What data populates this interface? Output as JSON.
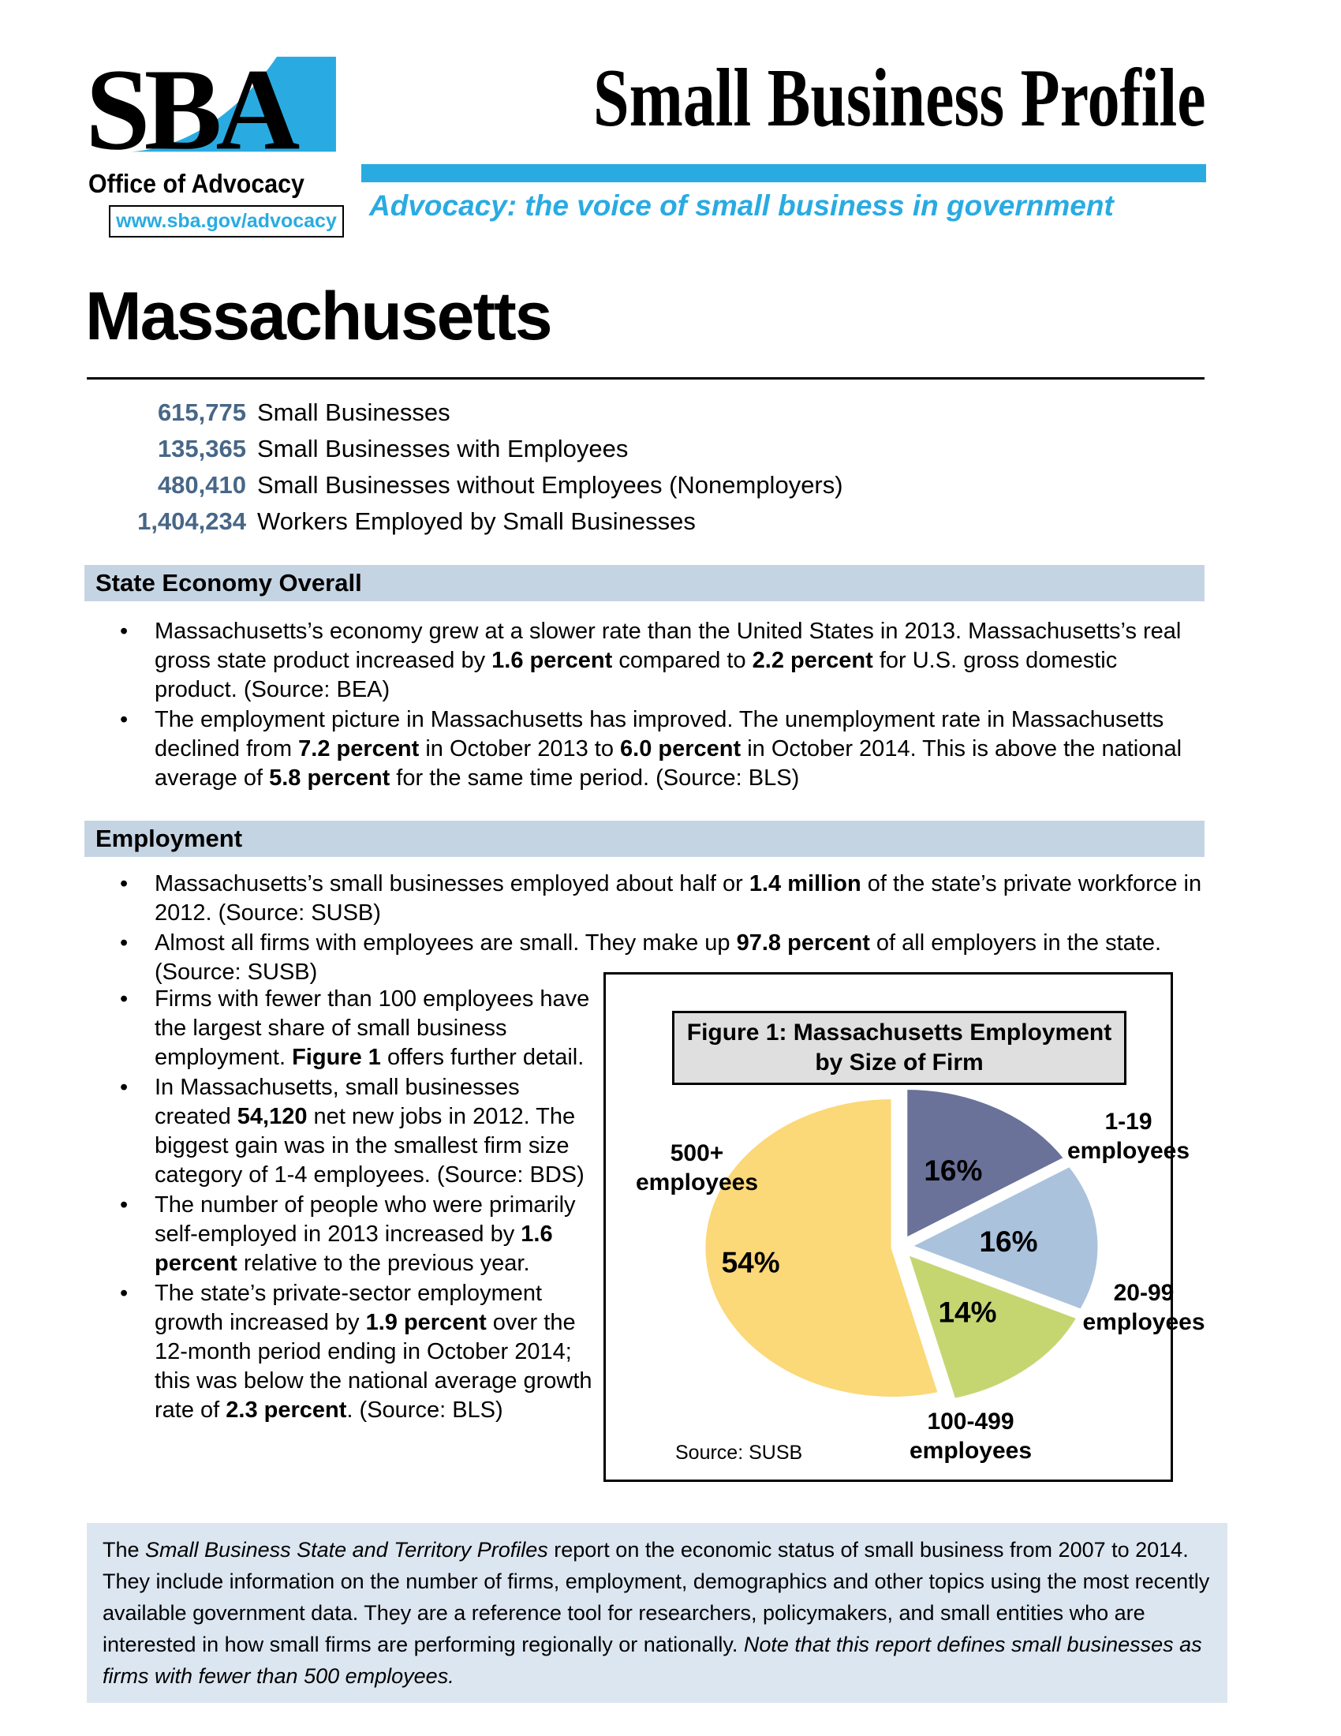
{
  "header": {
    "logo_text": "SBA",
    "logo_subtitle": "Office of Advocacy",
    "logo_url": "www.sba.gov/advocacy",
    "title": "Small Business Profile",
    "tagline": "Advocacy: the voice of small business in government"
  },
  "state": {
    "name": "Massachusetts"
  },
  "stats": [
    {
      "value": "615,775",
      "label": "Small Businesses"
    },
    {
      "value": "135,365",
      "label": "Small Businesses with Employees"
    },
    {
      "value": "480,410",
      "label": "Small Businesses without Employees (Nonemployers)"
    },
    {
      "value": "1,404,234",
      "label": "Workers Employed by Small Businesses"
    }
  ],
  "sections": [
    {
      "heading": "State Economy Overall",
      "bullets": [
        [
          {
            "t": "Massachusetts’s economy grew at a slower rate than the United States in 2013. Massachusetts’s  real gross state product increased by "
          },
          {
            "t": "1.6 percent",
            "b": true
          },
          {
            "t": " compared to "
          },
          {
            "t": "2.2 percent",
            "b": true
          },
          {
            "t": " for U.S. gross domestic product. (Source: BEA)"
          }
        ],
        [
          {
            "t": "The employment picture in Massachusetts has improved. The unemployment rate in Massachusetts declined from "
          },
          {
            "t": "7.2 percent",
            "b": true
          },
          {
            "t": " in October 2013 to "
          },
          {
            "t": "6.0 percent",
            "b": true
          },
          {
            "t": " in October 2014. This is above the national average of "
          },
          {
            "t": "5.8 percent",
            "b": true
          },
          {
            "t": " for the same time period. (Source: BLS)"
          }
        ]
      ]
    },
    {
      "heading": "Employment",
      "bullets_full": [
        [
          {
            "t": "Massachusetts’s small businesses employed about half or "
          },
          {
            "t": "1.4 million",
            "b": true
          },
          {
            "t": " of the state’s private workforce in 2012. (Source: SUSB)"
          }
        ],
        [
          {
            "t": "Almost  all firms with employees are small. They make up "
          },
          {
            "t": "97.8 percent",
            "b": true
          },
          {
            "t": " of all employers in the state. (Source: SUSB)"
          }
        ]
      ],
      "bullets_left": [
        [
          {
            "t": "Firms with fewer than 100 employees have the largest share of small business employment. "
          },
          {
            "t": "Figure 1",
            "b": true
          },
          {
            "t": " offers further detail."
          }
        ],
        [
          {
            "t": "In Massachusetts, small businesses created "
          },
          {
            "t": "54,120",
            "b": true
          },
          {
            "t": " net new jobs in 2012. The biggest gain was in the smallest firm size category of 1-4 employees. (Source: BDS)"
          }
        ],
        [
          {
            "t": "The number of people who were primarily self-employed in 2013 increased by "
          },
          {
            "t": "1.6 percent",
            "b": true
          },
          {
            "t": " relative to the previous year."
          }
        ],
        [
          {
            "t": "The state’s private-sector employment growth increased by "
          },
          {
            "t": "1.9 percent",
            "b": true
          },
          {
            "t": " over the 12-month period ending in October 2014; this was below the national average growth rate of "
          },
          {
            "t": "2.3 percent",
            "b": true
          },
          {
            "t": ". (Source: BLS)"
          }
        ]
      ]
    }
  ],
  "figure": {
    "title": "Figure 1: Massachusetts Employment by Size of Firm",
    "source": "Source: SUSB",
    "chart_data": {
      "type": "pie",
      "title": "Figure 1: Massachusetts Employment by Size of Firm",
      "start_angle_deg": 0,
      "direction": "clockwise",
      "data_labels": "percent-inside",
      "legend_position": "outside-callout-labels",
      "slices": [
        {
          "label": "1-19 employees",
          "value": 16,
          "color": "#6A7299"
        },
        {
          "label": "20-99 employees",
          "value": 16,
          "color": "#AAC2DC"
        },
        {
          "label": "100-499 employees",
          "value": 14,
          "color": "#C5D671"
        },
        {
          "label": "500+ employees",
          "value": 54,
          "color": "#FBD878"
        }
      ],
      "source": "Source: SUSB"
    }
  },
  "footer": {
    "segments": [
      {
        "t": "The "
      },
      {
        "t": "Small Business State and Territory Profiles",
        "i": true
      },
      {
        "t": " report on the economic status of small business from 2007 to 2014. They include information on the number of firms, employment, demographics and other topics using the most recently available government data. They are a reference tool for researchers, policymakers, and small entities who are interested in how small firms are performing regionally or nationally. "
      },
      {
        "t": "Note that this report defines small businesses as firms with fewer than 500 employees.",
        "i": true
      }
    ]
  },
  "colors": {
    "accent": "#29ABE2",
    "stat": "#476787",
    "band": "#C5D4E3",
    "footer": "#DCE6F1",
    "figtitle": "#DFDFDF"
  }
}
